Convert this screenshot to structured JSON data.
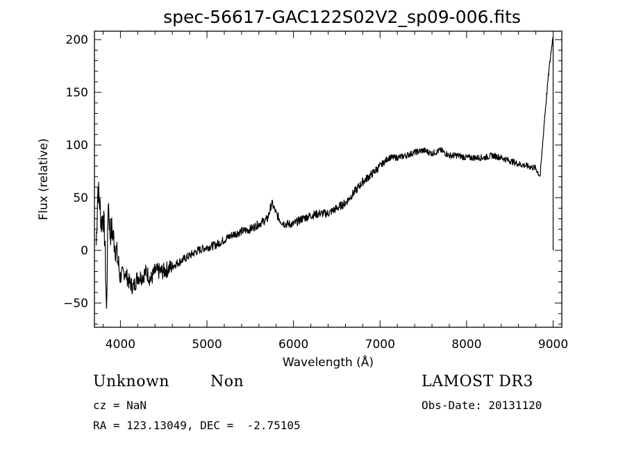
{
  "chart_data": {
    "type": "line",
    "title": "spec-56617-GAC122S02V2_sp09-006.fits",
    "xlabel": "Wavelength (Å)",
    "ylabel": "Flux (relative)",
    "xlim": [
      3700,
      9100
    ],
    "ylim": [
      -73,
      208
    ],
    "xticks": [
      4000,
      5000,
      6000,
      7000,
      8000,
      9000
    ],
    "yticks": [
      -50,
      0,
      50,
      100,
      150,
      200
    ],
    "grid": false,
    "series": [
      {
        "x": [
          3720,
          3740,
          3760,
          3780,
          3800,
          3820,
          3840,
          3860,
          3880,
          3900,
          3950,
          4000,
          4050,
          4100,
          4150,
          4200,
          4250,
          4300,
          4350,
          4400,
          4500,
          4600,
          4700,
          4800,
          4900,
          5000,
          5100,
          5200,
          5300,
          5400,
          5500,
          5600,
          5700,
          5750,
          5800,
          5850,
          5900,
          6000,
          6100,
          6200,
          6300,
          6400,
          6500,
          6600,
          6700,
          6800,
          6900,
          7000,
          7100,
          7200,
          7300,
          7400,
          7500,
          7600,
          7700,
          7800,
          7900,
          8000,
          8100,
          8200,
          8300,
          8400,
          8500,
          8600,
          8700,
          8800,
          8850,
          8900,
          8950,
          9000
        ],
        "y": [
          5,
          60,
          45,
          25,
          35,
          10,
          -60,
          50,
          15,
          20,
          0,
          -25,
          -20,
          -30,
          -35,
          -25,
          -25,
          -20,
          -28,
          -20,
          -20,
          -15,
          -10,
          -5,
          0,
          3,
          5,
          10,
          15,
          18,
          20,
          25,
          30,
          45,
          35,
          28,
          25,
          25,
          30,
          33,
          35,
          35,
          40,
          45,
          55,
          65,
          72,
          80,
          88,
          88,
          90,
          93,
          95,
          92,
          95,
          90,
          90,
          88,
          88,
          88,
          90,
          88,
          85,
          82,
          80,
          78,
          70,
          125,
          170,
          205
        ]
      }
    ]
  },
  "info": {
    "object_type": "Unknown",
    "object_subtype": "Non",
    "survey": "LAMOST DR3",
    "cz": "cz = NaN",
    "obs_date": "Obs-Date: 20131120",
    "coords": "RA = 123.13049, DEC =  -2.75105"
  }
}
